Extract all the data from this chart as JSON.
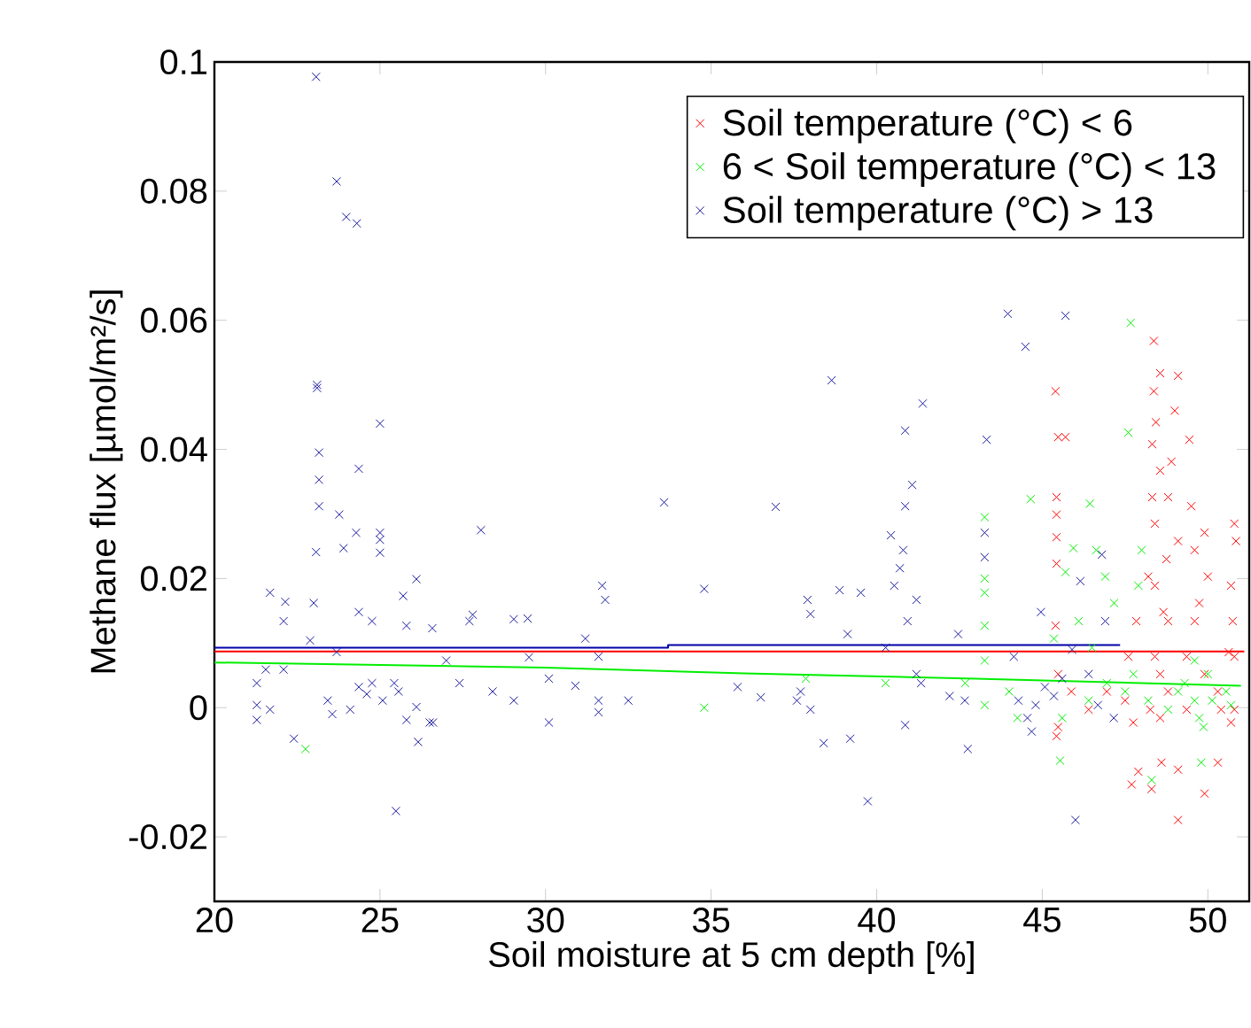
{
  "chart_data": {
    "type": "scatter",
    "xlabel": "Soil moisture at 5 cm depth [%]",
    "ylabel": "Methane flux [µmol/m²/s]",
    "xlim": [
      20,
      51.25
    ],
    "ylim": [
      -0.03,
      0.1
    ],
    "xticks": [
      20,
      25,
      30,
      35,
      40,
      45,
      50
    ],
    "yticks": [
      -0.02,
      0,
      0.02,
      0.04,
      0.06,
      0.08,
      0.1
    ],
    "marker": "cross",
    "legend": "top right",
    "series": [
      {
        "name": "Soil temperature (°C) < 6",
        "color": "#ff0000",
        "x": [
          45.4,
          45.48,
          45.7,
          45.43,
          45.43,
          45.43,
          45.43,
          45.4,
          45.48,
          45.43,
          45.48,
          48.37,
          49.1,
          49.0,
          48.43,
          48.56,
          49.44,
          48.32,
          48.56,
          48.8,
          48.4,
          48.75,
          48.4,
          48.8,
          48.4,
          48.8,
          48.56,
          49.1,
          49.5,
          49.6,
          49.9,
          50.0,
          49.6,
          49.36,
          49.9,
          50.3,
          50.8,
          50.85,
          50.7,
          50.75,
          50.8,
          50.8,
          50.7,
          47.75,
          47.7,
          48.3,
          47.9,
          48.6,
          49.1,
          49.9,
          49.1,
          50.3,
          47.84,
          47.6,
          47.5,
          46.4,
          45.88,
          46.95,
          48.26,
          48.56,
          49.36,
          50.4,
          48.2,
          48.32,
          48.37,
          48.9,
          48.66,
          49.74,
          50.63
        ],
        "values": [
          0.049,
          0.0419,
          0.0419,
          0.0326,
          0.0299,
          0.0264,
          0.0223,
          0.0127,
          0.0052,
          -0.0044,
          -0.003,
          0.0568,
          0.0514,
          0.046,
          0.0442,
          0.0518,
          0.0415,
          0.0408,
          0.0367,
          0.0326,
          0.0285,
          0.023,
          0.0189,
          0.0134,
          0.0079,
          0.0025,
          0.0052,
          0.0258,
          0.0312,
          0.0244,
          0.0271,
          0.0203,
          0.0134,
          0.0079,
          0.0052,
          0.0025,
          0.0285,
          0.0258,
          0.0189,
          0.0134,
          0.0079,
          -0.0003,
          -0.0023,
          -0.0023,
          -0.0119,
          -0.0126,
          -0.0099,
          -0.0085,
          -0.0096,
          -0.0133,
          -0.0174,
          -0.0085,
          0.0134,
          0.0079,
          0.0011,
          -0.0003,
          0.0025,
          0.0025,
          -0.0003,
          -0.0016,
          -0.0003,
          -0.0003,
          0.0203,
          0.0326,
          0.049,
          0.0381,
          0.0148,
          0.0162,
          0.0086
        ]
      },
      {
        "name": "6 < Soil temperature (°C) < 13",
        "color": "#00ee00",
        "x": [
          47.67,
          47.6,
          44.65,
          46.44,
          43.26,
          43.26,
          43.26,
          43.26,
          43.26,
          43.26,
          45.7,
          45.94,
          46.63,
          46.9,
          47.17,
          46.1,
          46.5,
          45.35,
          46.95,
          47.5,
          46.4,
          45.6,
          45.54,
          48.0,
          47.9,
          47.75,
          48.2,
          49.1,
          49.6,
          49.74,
          49.87,
          50.13,
          50.55,
          50.7,
          50.0,
          49.6,
          49.8,
          48.3,
          44.25,
          44.0,
          42.67,
          40.27,
          37.86,
          34.79,
          22.75,
          48.8,
          49.3
        ],
        "values": [
          0.0596,
          0.0426,
          0.0323,
          0.0316,
          0.0295,
          0.02,
          0.0178,
          0.0127,
          0.0073,
          0.0004,
          0.021,
          0.0247,
          0.0244,
          0.0203,
          0.0162,
          0.0134,
          0.0093,
          0.0107,
          0.0038,
          0.0025,
          0.0011,
          -0.0016,
          -0.0082,
          0.0244,
          0.0189,
          0.0052,
          0.0011,
          0.0025,
          0.0011,
          -0.0016,
          -0.003,
          0.0011,
          0.0025,
          0.0004,
          0.0052,
          0.0073,
          -0.0085,
          -0.0112,
          -0.0016,
          0.0025,
          0.0038,
          0.0038,
          0.0045,
          0.0,
          -0.0064,
          -0.0003,
          0.0038
        ]
      },
      {
        "name": "Soil temperature (°C) > 13",
        "color": "#1a1a9e",
        "x": [
          23.07,
          23.69,
          23.98,
          24.3,
          23.1,
          23.1,
          25.0,
          24.36,
          23.16,
          23.16,
          23.16,
          23.77,
          24.28,
          25.0,
          25.0,
          25.0,
          23.07,
          23.9,
          28.05,
          33.58,
          36.95,
          38.64,
          40.43,
          40.86,
          41.07,
          41.39,
          40.86,
          43.32,
          43.96,
          44.49,
          45.7,
          43.26,
          43.26,
          40.8,
          40.7,
          40.53,
          41.2,
          40.93,
          41.2,
          42.46,
          42.75,
          39.73,
          39.2,
          38.4,
          40.86,
          46.0,
          25.48,
          26.15,
          22.4,
          34.79,
          37.91,
          38.0,
          38.88,
          39.52,
          39.12,
          36.5,
          37.59,
          38.0,
          37.7,
          35.8,
          31.71,
          31.8,
          31.6,
          31.6,
          31.6,
          30.1,
          31.2,
          29.46,
          27.8,
          28.4,
          29.04,
          27.4,
          27.0,
          26.1,
          25.7,
          25.8,
          26.58,
          26.1,
          26.5,
          26.6,
          25.8,
          25.08,
          24.6,
          24.36,
          24.1,
          23.56,
          23.42,
          24.76,
          25.43,
          25.56,
          24.36,
          24.76,
          23.69,
          23.0,
          21.68,
          22.14,
          22.09,
          21.28,
          21.28,
          21.68,
          21.28,
          22.09,
          22.89,
          21.55,
          27.7,
          29.04,
          29.5,
          30.1,
          30.9,
          32.5,
          40.27,
          42.2,
          42.66,
          41.34,
          44.28,
          44.8,
          45.35,
          45.08,
          44.55,
          44.14,
          45.6,
          46.68,
          46.9,
          46.8,
          44.96,
          46.15,
          44.68,
          47.16,
          45.9,
          46.4
        ],
        "values": [
          0.0977,
          0.0815,
          0.076,
          0.075,
          0.05,
          0.0495,
          0.044,
          0.037,
          0.0395,
          0.0353,
          0.0312,
          0.0299,
          0.0271,
          0.0271,
          0.026,
          0.024,
          0.0241,
          0.0247,
          0.0275,
          0.0318,
          0.0311,
          0.0507,
          0.0267,
          0.0312,
          0.0345,
          0.0471,
          0.0429,
          0.0415,
          0.061,
          0.0559,
          0.0607,
          0.0271,
          0.0233,
          0.0244,
          0.0216,
          0.0189,
          0.0167,
          0.0134,
          0.0052,
          0.0114,
          -0.0064,
          -0.0145,
          -0.0048,
          -0.0055,
          -0.0027,
          -0.0174,
          -0.016,
          -0.0053,
          -0.0048,
          0.0184,
          0.0167,
          0.0145,
          0.0182,
          0.0178,
          0.0114,
          0.0016,
          0.0011,
          -0.0003,
          0.0025,
          0.0032,
          0.0189,
          0.0167,
          0.0079,
          0.0011,
          -0.0007,
          -0.0023,
          0.0107,
          0.0138,
          0.0144,
          0.0025,
          0.0011,
          0.0038,
          0.0073,
          0.0199,
          0.0173,
          0.0127,
          0.0123,
          0.0001,
          -0.0023,
          -0.0023,
          -0.0019,
          0.0011,
          0.0021,
          0.0032,
          -0.0003,
          -0.001,
          0.0011,
          0.0038,
          0.0038,
          0.0025,
          0.0148,
          0.0134,
          0.0086,
          0.0162,
          0.0178,
          0.0164,
          0.0134,
          0.0038,
          0.0004,
          -0.0003,
          -0.0019,
          0.0059,
          0.0104,
          0.0059,
          0.0134,
          0.0137,
          0.0078,
          0.0045,
          0.0034,
          0.0011,
          0.0093,
          0.0018,
          0.0011,
          0.0038,
          0.0011,
          0.0004,
          0.0018,
          0.0032,
          -0.0016,
          0.0079,
          0.0045,
          0.0004,
          0.0134,
          0.0237,
          0.0148,
          0.0196,
          -0.0037,
          -0.0016,
          0.009,
          0.0052
        ]
      },
      {
        "type": "line",
        "marker": "none",
        "color": "#ff0000",
        "x": [
          20,
          51.1
        ],
        "values": [
          0.0087,
          0.0087
        ]
      },
      {
        "type": "line",
        "marker": "none",
        "color": "#00ee00",
        "x": [
          20,
          30,
          36,
          43,
          51
        ],
        "values": [
          0.007,
          0.0062,
          0.0053,
          0.0045,
          0.0034
        ]
      },
      {
        "type": "line",
        "marker": "none",
        "color": "#0000aa",
        "x": [
          20,
          33.7,
          33.7,
          47.35
        ],
        "values": [
          0.0093,
          0.0093,
          0.0097,
          0.0097
        ]
      }
    ]
  }
}
